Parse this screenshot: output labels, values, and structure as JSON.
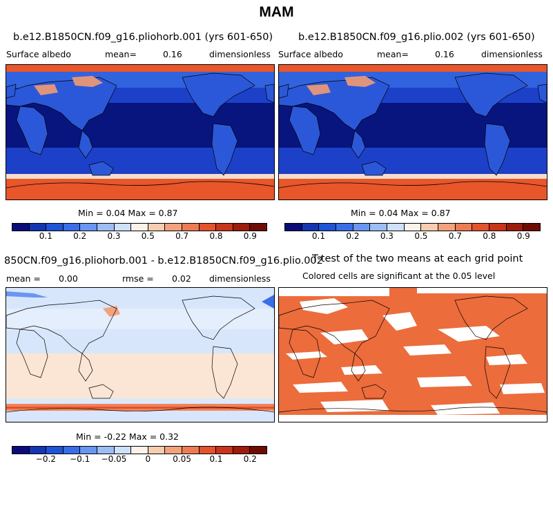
{
  "figure": {
    "title": "MAM"
  },
  "panels": {
    "a": {
      "title": "b.e12.B1850CN.f09_g16.pliohorb.001 (yrs 601-650)",
      "variable": "Surface albedo",
      "stat_label": "mean=",
      "stat_value": "0.16",
      "units": "dimensionless",
      "minmax": "Min =   0.04 Max =   0.87"
    },
    "b": {
      "title": "b.e12.B1850CN.f09_g16.plio.002 (yrs 601-650)",
      "variable": "Surface albedo",
      "stat_label": "mean=",
      "stat_value": "0.16",
      "units": "dimensionless",
      "minmax": "Min =   0.04 Max =   0.87"
    },
    "c": {
      "title": "850CN.f09_g16.pliohorb.001 - b.e12.B1850CN.f09_g16.plio.002",
      "mean_label": "mean =",
      "mean_value": "0.00",
      "rmse_label": "rmse =",
      "rmse_value": "0.02",
      "units": "dimensionless",
      "minmax": "Min =  -0.22 Max =   0.32"
    },
    "d": {
      "title": "T-test of the two means at each grid point",
      "subtitle": "Colored cells are significant at the 0.05 level"
    }
  },
  "colorbars": {
    "albedo": {
      "colors": [
        "#0b0b7a",
        "#1536b3",
        "#1f54d6",
        "#3a6ee8",
        "#6996f0",
        "#9dbdf5",
        "#cfe0fb",
        "#fdf2e8",
        "#f7cdb1",
        "#f2a27d",
        "#ec7c53",
        "#e2532e",
        "#c8351b",
        "#9d1c0b",
        "#6e0c04"
      ],
      "ticks": [
        "0.1",
        "0.2",
        "0.3",
        "0.5",
        "0.7",
        "0.8",
        "0.9"
      ]
    },
    "diff": {
      "colors": [
        "#0b0b7a",
        "#1536b3",
        "#1f54d6",
        "#3a6ee8",
        "#6996f0",
        "#9dbdf5",
        "#cfe0fb",
        "#fdf2e8",
        "#f7cdb1",
        "#f2a27d",
        "#ec7c53",
        "#e2532e",
        "#c8351b",
        "#9d1c0b",
        "#6e0c04"
      ],
      "ticks": [
        "−0.2",
        "−0.1",
        "−0.05",
        "0",
        "0.05",
        "0.1",
        "0.2"
      ]
    }
  },
  "colors": {
    "ocean_deep": "#08157e",
    "ocean_band": "#1d40c8",
    "land_blue": "#2f5fe0",
    "ice": "#e8562a",
    "ice_shelf": "#f38a5c",
    "diff_pos": "#fbe5d4",
    "diff_neg": "#d8e6fb",
    "sig": "#ec6c3c"
  }
}
